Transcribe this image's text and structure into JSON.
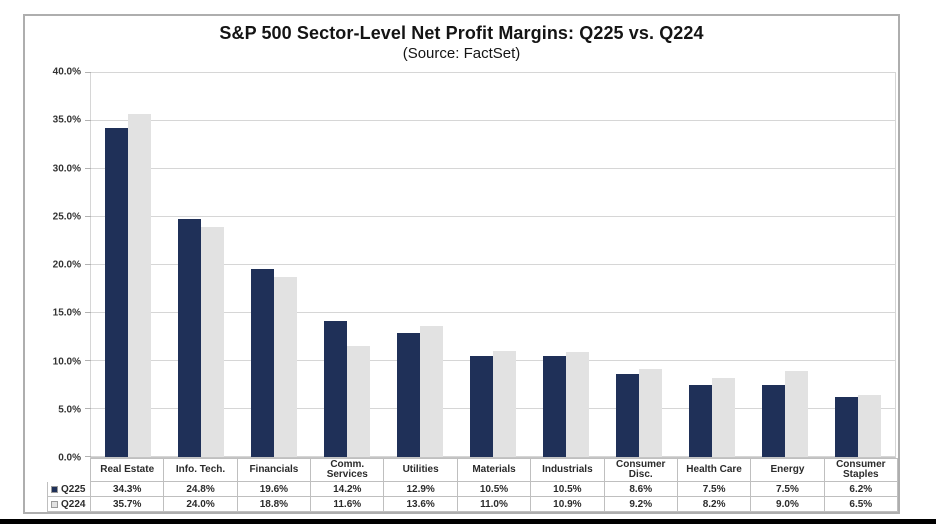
{
  "chart_data": {
    "type": "bar",
    "title": "S&P 500 Sector-Level Net Profit Margins: Q225 vs. Q224",
    "subtitle": "(Source: FactSet)",
    "categories": [
      "Real Estate",
      "Info. Tech.",
      "Financials",
      "Comm. Services",
      "Utilities",
      "Materials",
      "Industrials",
      "Consumer Disc.",
      "Health Care",
      "Energy",
      "Consumer Staples"
    ],
    "series": [
      {
        "name": "Q225",
        "color": "#1F3058",
        "values": [
          34.3,
          24.8,
          19.6,
          14.2,
          12.9,
          10.5,
          10.5,
          8.6,
          7.5,
          7.5,
          6.2
        ]
      },
      {
        "name": "Q224",
        "color": "#E2E2E2",
        "values": [
          35.7,
          24.0,
          18.8,
          11.6,
          13.6,
          11.0,
          10.9,
          9.2,
          8.2,
          9.0,
          6.5
        ]
      }
    ],
    "value_suffix": "%",
    "ylim": [
      0,
      40
    ],
    "ytick_step": 5,
    "ytick_labels": [
      "0.0%",
      "5.0%",
      "10.0%",
      "15.0%",
      "20.0%",
      "25.0%",
      "30.0%",
      "35.0%",
      "40.0%"
    ],
    "grid": true,
    "legend_position": "table-left",
    "grid_color": "#D6D6D6",
    "table_border_color": "#BFBFBF"
  }
}
